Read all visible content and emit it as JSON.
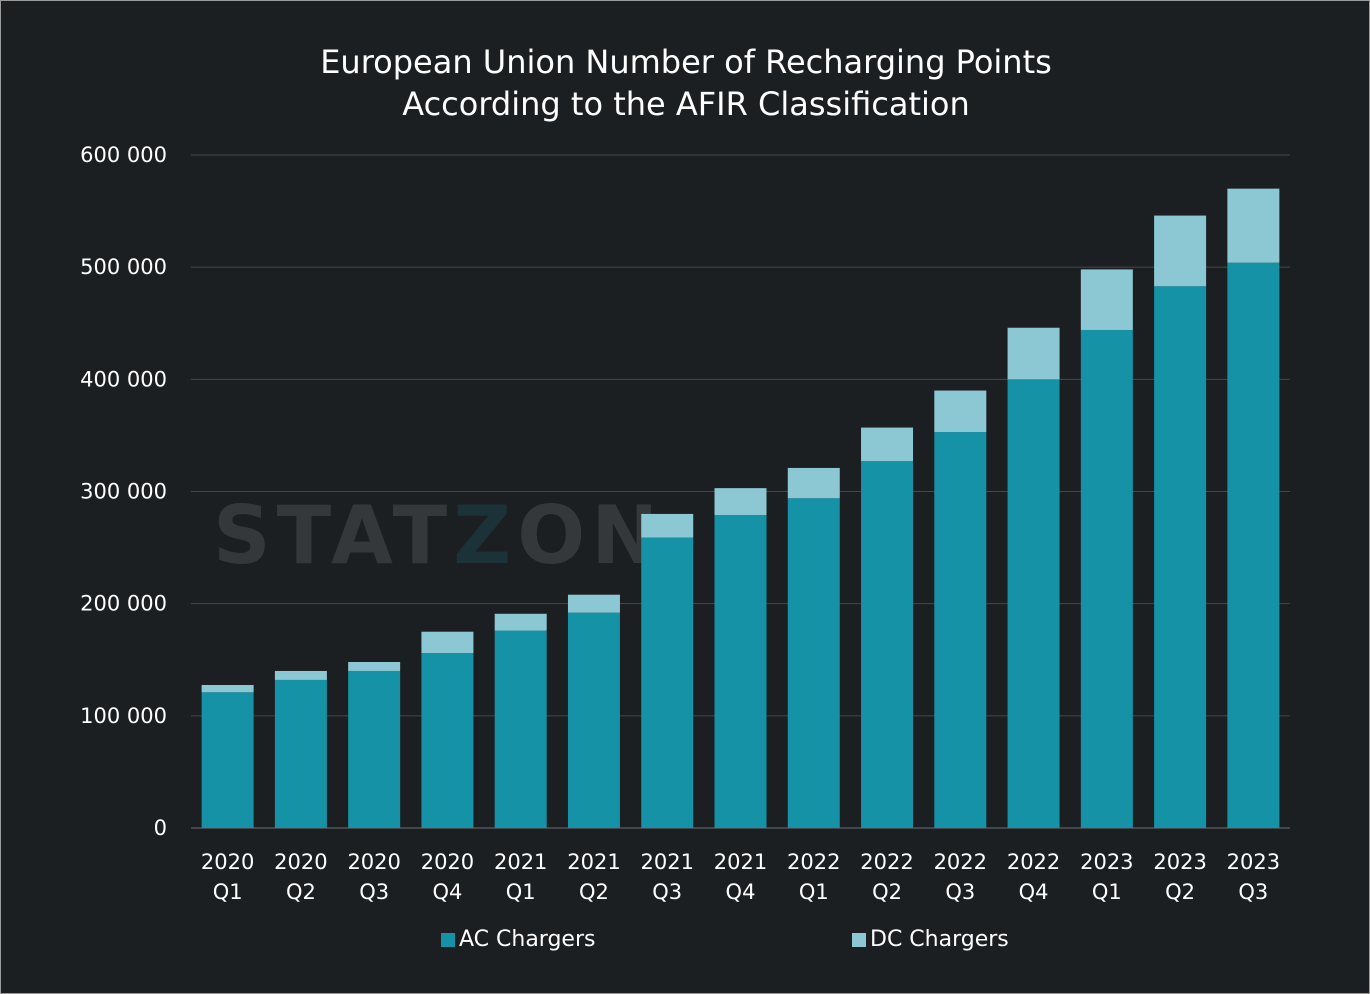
{
  "watermark": "STATZON",
  "chart_data": {
    "type": "bar",
    "stacked": true,
    "title": [
      "European Union Number of Recharging Points",
      "According to the AFIR Classification"
    ],
    "xlabel": "",
    "ylabel": "",
    "ylim": [
      0,
      600000
    ],
    "yticks": [
      0,
      100000,
      200000,
      300000,
      400000,
      500000,
      600000
    ],
    "ytick_labels": [
      "0",
      "100 000",
      "200 000",
      "300 000",
      "400 000",
      "500 000",
      "600 000"
    ],
    "grid": "horizontal",
    "legend_position": "bottom",
    "categories": [
      [
        "2020",
        "Q1"
      ],
      [
        "2020",
        "Q2"
      ],
      [
        "2020",
        "Q3"
      ],
      [
        "2020",
        "Q4"
      ],
      [
        "2021",
        "Q1"
      ],
      [
        "2021",
        "Q2"
      ],
      [
        "2021",
        "Q3"
      ],
      [
        "2021",
        "Q4"
      ],
      [
        "2022",
        "Q1"
      ],
      [
        "2022",
        "Q2"
      ],
      [
        "2022",
        "Q3"
      ],
      [
        "2022",
        "Q4"
      ],
      [
        "2023",
        "Q1"
      ],
      [
        "2023",
        "Q2"
      ],
      [
        "2023",
        "Q3"
      ]
    ],
    "series": [
      {
        "name": "AC Chargers",
        "color": "#1592a6",
        "values": [
          121000,
          132000,
          140000,
          156000,
          176000,
          192000,
          259000,
          279000,
          294000,
          327000,
          353000,
          400000,
          444000,
          483000,
          504000
        ]
      },
      {
        "name": "DC Chargers",
        "color": "#8cc8d3",
        "values": [
          6500,
          8000,
          8000,
          19000,
          15000,
          16000,
          21000,
          24000,
          27000,
          30000,
          37000,
          46000,
          54000,
          63000,
          66000
        ]
      }
    ],
    "colors": {
      "background": "#1c1f22",
      "grid": "#44484b",
      "text": "#ffffff"
    }
  }
}
